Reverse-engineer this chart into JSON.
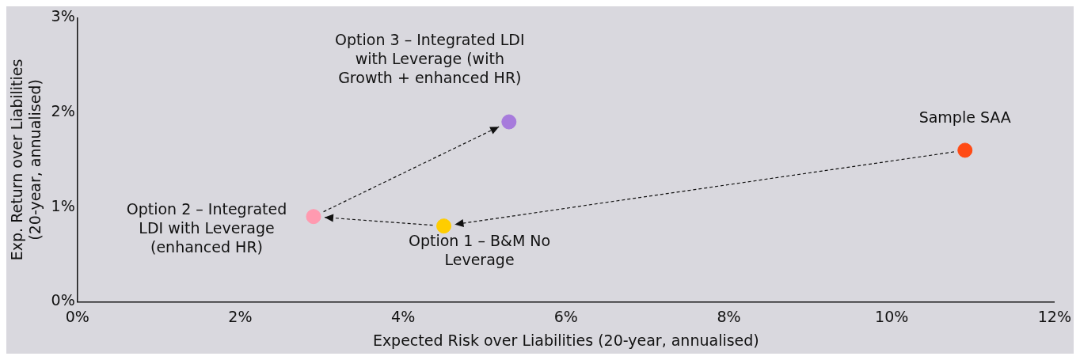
{
  "chart_data": {
    "type": "scatter",
    "x": [
      10.9,
      4.5,
      2.9,
      5.3
    ],
    "values": [
      1.6,
      0.8,
      0.9,
      1.9
    ],
    "colors": [
      "#ff4a14",
      "#ffcd00",
      "#ff9ab0",
      "#a77bdc"
    ],
    "xlabel": "Expected Risk over Liabilities (20-year, annualised)",
    "ylabel": "Exp. Return over Liabilities\n(20-year, annualised)",
    "xlim": [
      0,
      12
    ],
    "xticks": [
      {
        "value": 0,
        "label": "0%"
      },
      {
        "value": 2,
        "label": "2%"
      },
      {
        "value": 4,
        "label": "4%"
      },
      {
        "value": 6,
        "label": "6%"
      },
      {
        "value": 8,
        "label": "8%"
      },
      {
        "value": 10,
        "label": "10%"
      },
      {
        "value": 12,
        "label": "12%"
      }
    ],
    "ylim": [
      0,
      3
    ],
    "yticks": [
      {
        "value": 0,
        "label": "0%"
      },
      {
        "value": 1,
        "label": "1%"
      },
      {
        "value": 2,
        "label": "2%"
      },
      {
        "value": 3,
        "label": "3%"
      }
    ],
    "annotations": [
      {
        "text": "Sample SAA",
        "x": 10.9,
        "y": 1.6
      },
      {
        "text": "Option 1 – B&M No\nLeverage",
        "x": 4.5,
        "y": 0.8
      },
      {
        "text": "Option 2 – Integrated\nLDI with Leverage\n(enhanced HR)",
        "x": 2.9,
        "y": 0.9
      },
      {
        "text": "Option 3 – Integrated LDI\nwith Leverage (with\nGrowth + enhanced HR)",
        "x": 5.3,
        "y": 1.9
      }
    ],
    "grid": false,
    "legend": false,
    "marker": "circle"
  }
}
